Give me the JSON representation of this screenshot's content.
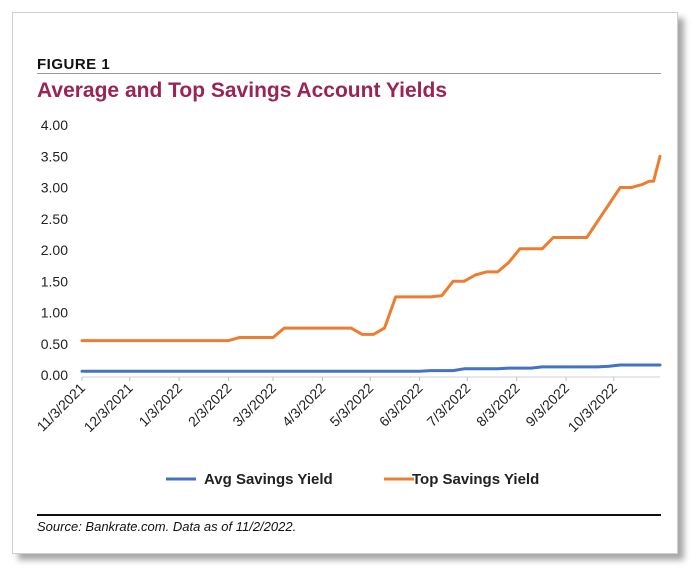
{
  "figure_label": "FIGURE 1",
  "title": "Average and Top Savings Account Yields",
  "source": "Source: Bankrate.com. Data as of 11/2/2022.",
  "colors": {
    "title": "#9b2456",
    "avg": "#4472c4",
    "top": "#ed7d31"
  },
  "chart_data": {
    "type": "line",
    "title": "Average and Top Savings Account Yields",
    "xlabel": "",
    "ylabel": "",
    "ylim": [
      0,
      4
    ],
    "yticks": [
      "0.00",
      "0.50",
      "1.00",
      "1.50",
      "2.00",
      "2.50",
      "3.00",
      "3.50",
      "4.00"
    ],
    "xlim": [
      "11/3/2021",
      "11/1/2022"
    ],
    "xticks": [
      "11/3/2021",
      "12/3/2021",
      "1/3/2022",
      "2/3/2022",
      "3/3/2022",
      "4/3/2022",
      "5/3/2022",
      "6/3/2022",
      "7/3/2022",
      "8/3/2022",
      "9/3/2022",
      "10/3/2022"
    ],
    "grid": false,
    "legend": "bottom",
    "series": [
      {
        "name": "Avg Savings Yield",
        "color": "#4472c4",
        "points": [
          [
            "11/3/2021",
            0.06
          ],
          [
            "6/3/2022",
            0.06
          ],
          [
            "6/10/2022",
            0.07
          ],
          [
            "6/24/2022",
            0.07
          ],
          [
            "7/1/2022",
            0.1
          ],
          [
            "7/22/2022",
            0.1
          ],
          [
            "7/29/2022",
            0.11
          ],
          [
            "8/12/2022",
            0.11
          ],
          [
            "8/19/2022",
            0.13
          ],
          [
            "9/23/2022",
            0.13
          ],
          [
            "9/30/2022",
            0.14
          ],
          [
            "10/7/2022",
            0.16
          ],
          [
            "11/1/2022",
            0.16
          ]
        ]
      },
      {
        "name": "Top Savings Yield",
        "color": "#ed7d31",
        "points": [
          [
            "11/3/2021",
            0.55
          ],
          [
            "2/3/2022",
            0.55
          ],
          [
            "2/10/2022",
            0.6
          ],
          [
            "3/3/2022",
            0.6
          ],
          [
            "3/10/2022",
            0.75
          ],
          [
            "4/21/2022",
            0.75
          ],
          [
            "4/28/2022",
            0.65
          ],
          [
            "5/5/2022",
            0.65
          ],
          [
            "5/12/2022",
            0.75
          ],
          [
            "5/19/2022",
            1.25
          ],
          [
            "6/10/2022",
            1.25
          ],
          [
            "6/17/2022",
            1.27
          ],
          [
            "6/24/2022",
            1.5
          ],
          [
            "7/1/2022",
            1.5
          ],
          [
            "7/8/2022",
            1.6
          ],
          [
            "7/15/2022",
            1.65
          ],
          [
            "7/22/2022",
            1.65
          ],
          [
            "7/29/2022",
            1.8
          ],
          [
            "8/5/2022",
            2.02
          ],
          [
            "8/19/2022",
            2.02
          ],
          [
            "8/26/2022",
            2.2
          ],
          [
            "9/16/2022",
            2.2
          ],
          [
            "10/7/2022",
            3.0
          ],
          [
            "10/14/2022",
            3.0
          ],
          [
            "10/21/2022",
            3.05
          ],
          [
            "10/25/2022",
            3.1
          ],
          [
            "10/28/2022",
            3.1
          ],
          [
            "11/1/2022",
            3.5
          ]
        ]
      }
    ]
  }
}
